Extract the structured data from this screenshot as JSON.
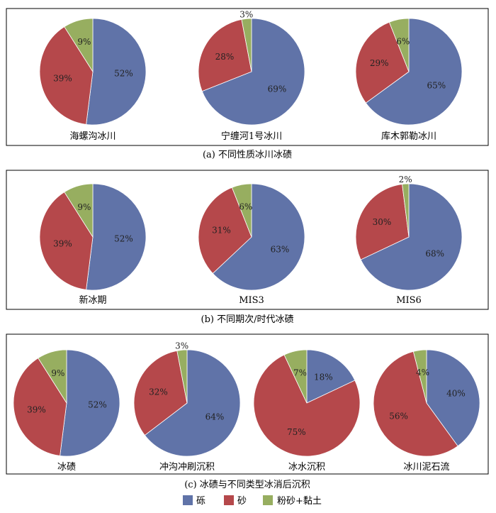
{
  "colors": {
    "gravel": "#6073A8",
    "sand": "#B5484B",
    "silt": "#97AE60"
  },
  "legend": {
    "items": [
      {
        "label": "砾",
        "color": "#6073A8"
      },
      {
        "label": "砂",
        "color": "#B5484B"
      },
      {
        "label": "粉砂+黏土",
        "color": "#97AE60"
      }
    ]
  },
  "chart_data": [
    {
      "type": "pie",
      "panel_caption": "(a) 不同性质冰川冰碛",
      "categories": [
        "砾",
        "砂",
        "粉砂+黏土"
      ],
      "charts": [
        {
          "label": "海螺沟冰川",
          "values": [
            52,
            39,
            9
          ]
        },
        {
          "label": "宁缠河1号冰川",
          "values": [
            69,
            28,
            3
          ]
        },
        {
          "label": "库木郭勒冰川",
          "values": [
            65,
            29,
            6
          ]
        }
      ]
    },
    {
      "type": "pie",
      "panel_caption": "(b) 不同期次/时代冰碛",
      "categories": [
        "砾",
        "砂",
        "粉砂+黏土"
      ],
      "charts": [
        {
          "label": "新冰期",
          "values": [
            52,
            39,
            9
          ]
        },
        {
          "label": "MIS3",
          "values": [
            63,
            31,
            6
          ]
        },
        {
          "label": "MIS6",
          "values": [
            68,
            30,
            2
          ]
        }
      ]
    },
    {
      "type": "pie",
      "panel_caption": "(c) 冰碛与不同类型冰消后沉积",
      "categories": [
        "砾",
        "砂",
        "粉砂+黏土"
      ],
      "charts": [
        {
          "label": "冰碛",
          "values": [
            52,
            39,
            9
          ]
        },
        {
          "label": "冲沟冲刷沉积",
          "values": [
            64,
            32,
            3
          ]
        },
        {
          "label": "冰水沉积",
          "values": [
            18,
            75,
            7
          ]
        },
        {
          "label": "冰川泥石流",
          "values": [
            40,
            56,
            4
          ]
        }
      ]
    }
  ]
}
